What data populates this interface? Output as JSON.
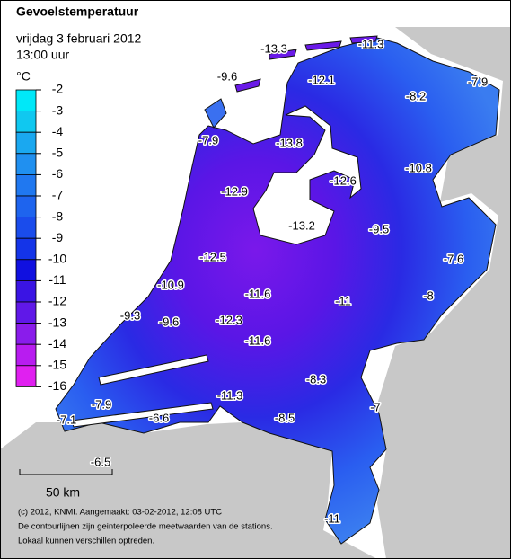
{
  "header": {
    "title": "Gevoelstemperatuur",
    "date": "vrijdag 3 februari 2012",
    "time": "13:00 uur"
  },
  "legend": {
    "unit": "°C",
    "levels": [
      -2,
      -3,
      -4,
      -5,
      -6,
      -7,
      -8,
      -9,
      -10,
      -11,
      -12,
      -13,
      -14,
      -15,
      -16
    ],
    "colors": [
      "#00e8f8",
      "#10c8f0",
      "#1aa8f0",
      "#2090f0",
      "#2078f0",
      "#1e64ee",
      "#1a4cec",
      "#1434e8",
      "#1010e0",
      "#3a14e4",
      "#6018e8",
      "#8a1ceb",
      "#b81cf0",
      "#e020f0"
    ]
  },
  "stations": [
    -13.3,
    -11.3,
    -9.6,
    -12.1,
    -8.2,
    -7.9,
    -7.9,
    -13.8,
    -12.6,
    -10.8,
    -12.9,
    -13.2,
    -9.5,
    -12.5,
    -7.6,
    -10.9,
    -11.6,
    -11.0,
    -8.0,
    -9.3,
    -9.6,
    -12.3,
    -11.6,
    -8.3,
    -11.3,
    -7.0,
    -7.9,
    -7.1,
    -6.6,
    -8.5,
    -6.5,
    -11.0
  ],
  "scale": "50 km",
  "footer": [
    "(c) 2012, KNMI. Aangemaakt: 03-02-2012, 12:08 UTC",
    "De contourlijnen zijn geinterpoleerde meetwaarden van de stations.",
    "Lokaal kunnen verschillen optreden."
  ]
}
